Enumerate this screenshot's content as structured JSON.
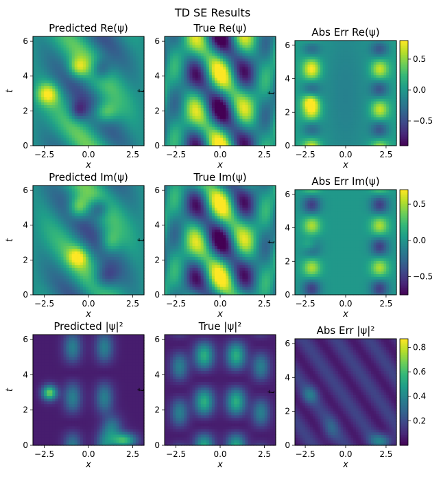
{
  "figure": {
    "suptitle": "TD SE Results"
  },
  "colormap": [
    "#440154",
    "#482878",
    "#3e4989",
    "#31688e",
    "#26828e",
    "#1f9e89",
    "#35b779",
    "#6ece58",
    "#b5de2b",
    "#fde725"
  ],
  "chart_data": [
    {
      "id": "pred-re",
      "type": "heatmap",
      "title": "Predicted Re(ψ)",
      "xlabel": "x",
      "ylabel": "t",
      "xlim": [
        -3.14,
        3.14
      ],
      "ylim": [
        0,
        6.28
      ],
      "xticks": [
        "−2.5",
        "0.0",
        "2.5"
      ],
      "yticks": [
        "0",
        "2",
        "4",
        "6"
      ],
      "field": "pred_re",
      "vmin": -1,
      "vmax": 1,
      "colorbar": false
    },
    {
      "id": "true-re",
      "type": "heatmap",
      "title": "True Re(ψ)",
      "xlabel": "x",
      "ylabel": "t",
      "xlim": [
        -3.14,
        3.14
      ],
      "ylim": [
        0,
        6.28
      ],
      "xticks": [
        "−2.5",
        "0.0",
        "2.5"
      ],
      "yticks": [
        "0",
        "2",
        "4",
        "6"
      ],
      "field": "true_re",
      "vmin": -1,
      "vmax": 1,
      "colorbar": false
    },
    {
      "id": "err-re",
      "type": "heatmap",
      "title": "Abs Err Re(ψ)",
      "xlabel": "x",
      "ylabel": "t",
      "xlim": [
        -3.14,
        3.14
      ],
      "ylim": [
        0,
        6.28
      ],
      "xticks": [
        "−2.5",
        "0.0",
        "2.5"
      ],
      "yticks": [
        "0",
        "2",
        "4",
        "6"
      ],
      "field": "err_re",
      "vmin": -0.9,
      "vmax": 0.8,
      "colorbar": true,
      "cbar_ticks": [
        0.5,
        0.0,
        -0.5
      ],
      "cbar_labels": [
        "0.5",
        "0.0",
        "−0.5"
      ]
    },
    {
      "id": "pred-im",
      "type": "heatmap",
      "title": "Predicted Im(ψ)",
      "xlabel": "x",
      "ylabel": "t",
      "xlim": [
        -3.14,
        3.14
      ],
      "ylim": [
        0,
        6.28
      ],
      "xticks": [
        "−2.5",
        "0.0",
        "2.5"
      ],
      "yticks": [
        "0",
        "2",
        "4",
        "6"
      ],
      "field": "pred_im",
      "vmin": -1,
      "vmax": 1,
      "colorbar": false
    },
    {
      "id": "true-im",
      "type": "heatmap",
      "title": "True Im(ψ)",
      "xlabel": "x",
      "ylabel": "t",
      "xlim": [
        -3.14,
        3.14
      ],
      "ylim": [
        0,
        6.28
      ],
      "xticks": [
        "−2.5",
        "0.0",
        "2.5"
      ],
      "yticks": [
        "0",
        "2",
        "4",
        "6"
      ],
      "field": "true_im",
      "vmin": -1,
      "vmax": 1,
      "colorbar": false
    },
    {
      "id": "err-im",
      "type": "heatmap",
      "title": "Abs Err Im(ψ)",
      "xlabel": "x",
      "ylabel": "t",
      "xlim": [
        -3.14,
        3.14
      ],
      "ylim": [
        0,
        6.28
      ],
      "xticks": [
        "−2.5",
        "0.0",
        "2.5"
      ],
      "yticks": [
        "0",
        "2",
        "4",
        "6"
      ],
      "field": "err_im",
      "vmin": -0.75,
      "vmax": 0.7,
      "colorbar": true,
      "cbar_ticks": [
        0.5,
        0.0,
        -0.5
      ],
      "cbar_labels": [
        "0.5",
        "0.0",
        "−0.5"
      ]
    },
    {
      "id": "pred-abs",
      "type": "heatmap",
      "title": "Predicted |ψ|²",
      "xlabel": "x",
      "ylabel": "t",
      "xlim": [
        -3.14,
        3.14
      ],
      "ylim": [
        0,
        6.28
      ],
      "xticks": [
        "−2.5",
        "0.0",
        "2.5"
      ],
      "yticks": [
        "0",
        "2",
        "4",
        "6"
      ],
      "field": "pred_abs",
      "vmin": 0,
      "vmax": 1,
      "colorbar": false
    },
    {
      "id": "true-abs",
      "type": "heatmap",
      "title": "True |ψ|²",
      "xlabel": "x",
      "ylabel": "t",
      "xlim": [
        -3.14,
        3.14
      ],
      "ylim": [
        0,
        6.28
      ],
      "xticks": [
        "−2.5",
        "0.0",
        "2.5"
      ],
      "yticks": [
        "0",
        "2",
        "4",
        "6"
      ],
      "field": "true_abs",
      "vmin": 0,
      "vmax": 1,
      "colorbar": false
    },
    {
      "id": "err-abs",
      "type": "heatmap",
      "title": "Abs Err |ψ|²",
      "xlabel": "x",
      "ylabel": "t",
      "xlim": [
        -3.14,
        3.14
      ],
      "ylim": [
        0,
        6.28
      ],
      "xticks": [
        "−2.5",
        "0.0",
        "2.5"
      ],
      "yticks": [
        "0",
        "2",
        "4",
        "6"
      ],
      "field": "err_abs",
      "vmin": 0,
      "vmax": 0.87,
      "colorbar": true,
      "cbar_ticks": [
        0.8,
        0.6,
        0.4,
        0.2
      ],
      "cbar_labels": [
        "0.8",
        "0.6",
        "0.4",
        "0.2"
      ]
    }
  ]
}
